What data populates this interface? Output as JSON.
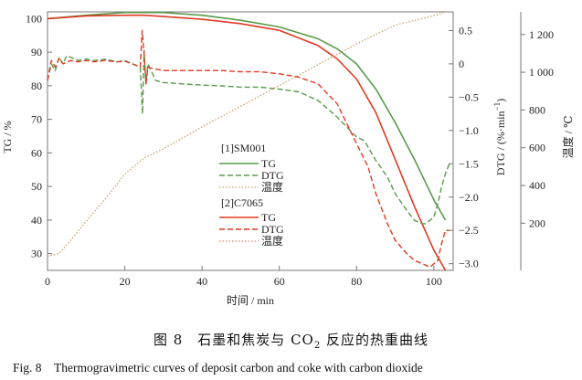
{
  "chart_data": {
    "type": "line",
    "xlabel": "时间 / min",
    "ylabel_left": "TG / %",
    "ylabel_right1": "DTG / (%·min",
    "ylabel_right1_sup": "−1",
    "ylabel_right1_tail": ")",
    "ylabel_right2": "温度 / ℃",
    "xlim": [
      0,
      105
    ],
    "ylim_left": [
      25,
      102
    ],
    "ylim_dtg": [
      -3.1,
      0.78
    ],
    "ylim_temp": [
      -50,
      1320
    ],
    "x_ticks": [
      "0",
      "20",
      "40",
      "60",
      "80",
      "100"
    ],
    "y_left_ticks": [
      "100",
      "90",
      "80",
      "70",
      "60",
      "50",
      "40",
      "30"
    ],
    "y_dtg_ticks": [
      "0.5",
      "0",
      "−0.5",
      "−1.0",
      "−1.5",
      "−2.0",
      "−2.5",
      "−3.0"
    ],
    "y_temp_ticks": [
      "1 200",
      "1 000",
      "800",
      "600",
      "400",
      "200"
    ],
    "legend": {
      "group1": "[1]SM001",
      "group2": "[2]C7065",
      "tg": "TG",
      "dtg": "DTG",
      "temp": "温度"
    },
    "colors": {
      "sm001": "#5a9a4c",
      "c7065": "#e03a22",
      "temp": "#c9a46a"
    },
    "series": [
      {
        "name": "SM001 TG",
        "axis": "left",
        "x": [
          0,
          10,
          20,
          30,
          40,
          50,
          60,
          70,
          75,
          80,
          85,
          90,
          95,
          100,
          103
        ],
        "y": [
          100,
          101,
          101.8,
          101.8,
          101,
          99.5,
          97.5,
          94,
          91,
          86.5,
          79,
          69,
          58,
          46,
          40
        ]
      },
      {
        "name": "C7065 TG",
        "axis": "left",
        "x": [
          0,
          10,
          20,
          25,
          30,
          40,
          50,
          60,
          70,
          75,
          80,
          85,
          90,
          95,
          100,
          103
        ],
        "y": [
          100,
          100.8,
          101,
          101,
          100.6,
          99.8,
          98.5,
          96.5,
          92,
          88,
          82,
          72,
          58,
          44,
          31,
          25
        ]
      },
      {
        "name": "SM001 DTG",
        "axis": "dtg",
        "x": [
          0,
          1,
          2,
          3,
          4,
          5,
          6,
          8,
          10,
          12,
          15,
          18,
          20,
          22,
          24,
          24.6,
          25,
          25.5,
          26,
          28,
          30,
          35,
          40,
          45,
          50,
          55,
          60,
          65,
          70,
          75,
          80,
          82,
          85,
          88,
          90,
          93,
          95,
          97,
          98,
          100,
          101,
          102,
          103,
          104
        ],
        "y": [
          -0.25,
          0,
          -0.1,
          0.1,
          0,
          0.12,
          0.1,
          0.05,
          0.07,
          0.05,
          0.07,
          0.03,
          0.05,
          0.0,
          -0.05,
          -0.75,
          0.2,
          -0.3,
          0.0,
          -0.25,
          -0.28,
          -0.3,
          -0.32,
          -0.33,
          -0.35,
          -0.35,
          -0.38,
          -0.42,
          -0.55,
          -0.8,
          -1.1,
          -1.15,
          -1.45,
          -1.7,
          -1.95,
          -2.2,
          -2.35,
          -2.4,
          -2.4,
          -2.3,
          -2.1,
          -1.85,
          -1.65,
          -1.5
        ]
      },
      {
        "name": "C7065 DTG",
        "axis": "dtg",
        "x": [
          0,
          1,
          2,
          3,
          4,
          6,
          8,
          10,
          12,
          15,
          18,
          20,
          22,
          24,
          24.5,
          25,
          25.5,
          26,
          28,
          30,
          35,
          40,
          45,
          50,
          55,
          60,
          65,
          70,
          75,
          80,
          83,
          85,
          88,
          90,
          93,
          95,
          97,
          99,
          101,
          102,
          103,
          104
        ],
        "y": [
          -0.25,
          0.05,
          -0.05,
          0.08,
          0,
          0.05,
          0.03,
          0.05,
          0.03,
          0.05,
          0.03,
          0.04,
          0.0,
          -0.05,
          0.5,
          0.15,
          -0.3,
          -0.05,
          -0.08,
          -0.1,
          -0.1,
          -0.1,
          -0.1,
          -0.12,
          -0.12,
          -0.15,
          -0.2,
          -0.3,
          -0.6,
          -1.2,
          -1.55,
          -1.95,
          -2.4,
          -2.65,
          -2.85,
          -2.95,
          -3.0,
          -3.05,
          -2.95,
          -2.7,
          -2.5,
          -2.5
        ]
      },
      {
        "name": "Temperature",
        "axis": "temp",
        "x": [
          0,
          3,
          6,
          10,
          15,
          20,
          25,
          30,
          40,
          50,
          60,
          70,
          80,
          90,
          100,
          103
        ],
        "y": [
          25,
          40,
          110,
          210,
          330,
          460,
          545,
          595,
          710,
          820,
          930,
          1040,
          1150,
          1250,
          1300,
          1320
        ]
      }
    ]
  },
  "caption": {
    "cn_prefix": "图 8　石墨和焦炭与 CO",
    "cn_sub": "2",
    "cn_suffix": " 反应的热重曲线",
    "en": "Fig. 8　Thermogravimetric curves of deposit carbon and coke with carbon dioxide"
  }
}
